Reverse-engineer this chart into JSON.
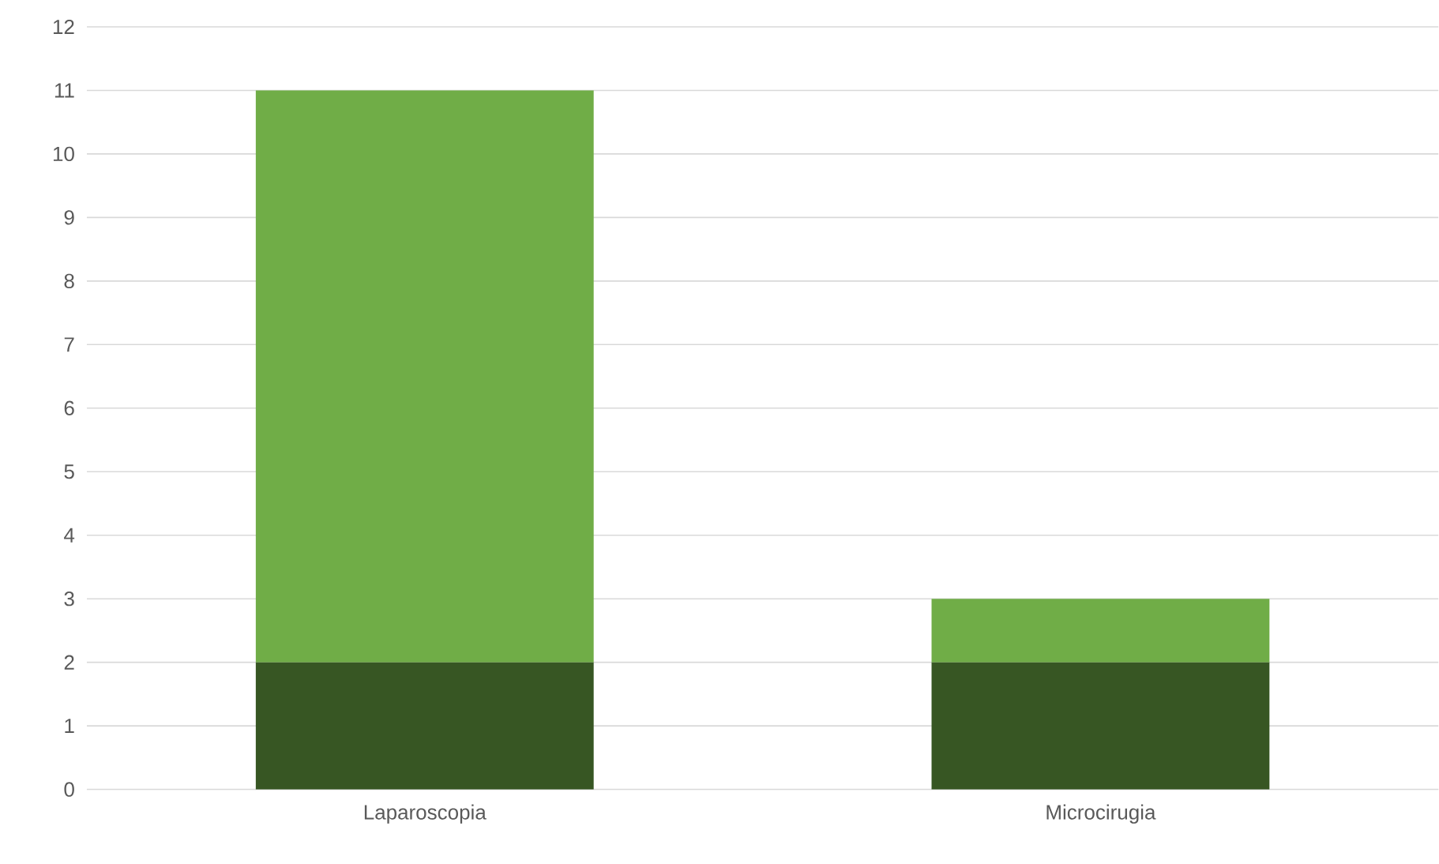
{
  "chart_data": {
    "type": "bar",
    "stacked": true,
    "categories": [
      "Laparoscopia",
      "Microcirugia"
    ],
    "series": [
      {
        "color": "#375623",
        "values": [
          2,
          2
        ]
      },
      {
        "color": "#70ad47",
        "values": [
          9,
          1
        ]
      }
    ],
    "ylim": [
      0,
      12
    ],
    "yticks": [
      0,
      1,
      2,
      3,
      4,
      5,
      6,
      7,
      8,
      9,
      10,
      11,
      12
    ],
    "grid": "y"
  }
}
